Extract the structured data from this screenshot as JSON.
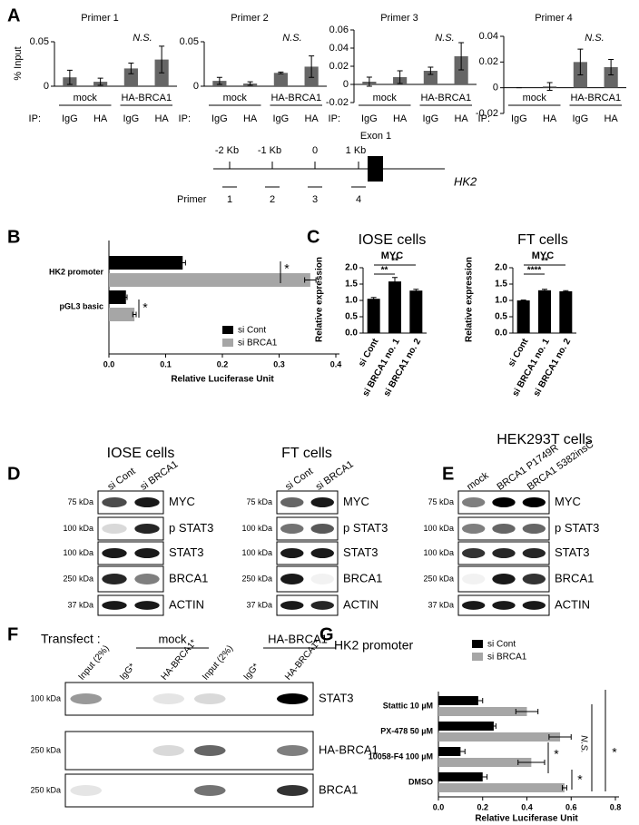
{
  "panel_letters": [
    "A",
    "B",
    "C",
    "D",
    "E",
    "F",
    "G"
  ],
  "chart_data": [
    {
      "type": "bar",
      "title": "Primer 1",
      "ylabel": "% Input",
      "category_prefix": "IP:",
      "categories": [
        "IgG",
        "HA",
        "IgG",
        "HA"
      ],
      "groups": [
        "mock",
        "HA-BRCA1"
      ],
      "values": [
        0.01,
        0.005,
        0.02,
        0.03
      ],
      "errors": [
        0.008,
        0.004,
        0.006,
        0.015
      ],
      "color": "#666666",
      "ylim": [
        0,
        0.05
      ],
      "yticks": [
        0,
        0.05
      ],
      "annotations": [
        "N.S."
      ]
    },
    {
      "type": "bar",
      "title": "Primer 2",
      "category_prefix": "IP:",
      "categories": [
        "IgG",
        "HA",
        "IgG",
        "HA"
      ],
      "groups": [
        "mock",
        "HA-BRCA1"
      ],
      "values": [
        0.006,
        0.003,
        0.015,
        0.022
      ],
      "errors": [
        0.004,
        0.002,
        0.001,
        0.012
      ],
      "color": "#666666",
      "ylim": [
        0,
        0.05
      ],
      "yticks": [
        0,
        0.05
      ],
      "annotations": [
        "N.S."
      ]
    },
    {
      "type": "bar",
      "title": "Primer 3",
      "category_prefix": "IP:",
      "categories": [
        "IgG",
        "HA",
        "IgG",
        "HA"
      ],
      "groups": [
        "mock",
        "HA-BRCA1"
      ],
      "values": [
        0.003,
        0.008,
        0.015,
        0.031
      ],
      "errors": [
        0.005,
        0.007,
        0.004,
        0.015
      ],
      "color": "#666666",
      "ylim": [
        -0.02,
        0.06
      ],
      "yticks": [
        -0.02,
        0,
        0.02,
        0.04,
        0.06
      ],
      "annotations": [
        "N.S."
      ]
    },
    {
      "type": "bar",
      "title": "Primer 4",
      "category_prefix": "IP:",
      "categories": [
        "IgG",
        "HA",
        "IgG",
        "HA"
      ],
      "groups": [
        "mock",
        "HA-BRCA1"
      ],
      "values": [
        0,
        0.001,
        0.02,
        0.016
      ],
      "errors": [
        0,
        0.003,
        0.01,
        0.006
      ],
      "color": "#666666",
      "ylim": [
        -0.02,
        0.04
      ],
      "yticks": [
        -0.02,
        0,
        0.02,
        0.04
      ],
      "annotations": [
        "N.S."
      ]
    },
    {
      "type": "barh",
      "categories": [
        "HK2 promoter",
        "pGL3 basic"
      ],
      "series": [
        {
          "name": "si Cont",
          "color": "#000000",
          "values": [
            0.13,
            0.03
          ],
          "errors": [
            0.005,
            0.002
          ]
        },
        {
          "name": "si BRCA1",
          "color": "#a6a6a6",
          "values": [
            0.355,
            0.045
          ],
          "errors": [
            0.01,
            0.003
          ]
        }
      ],
      "xlabel": "Relative Luciferase Unit",
      "xlim": [
        0,
        0.4
      ],
      "xticks": [
        {
          "value": 0,
          "label": "0.0"
        },
        0.1,
        0.2,
        0.3,
        0.4
      ],
      "legend": "lower right",
      "annotations": [
        "*",
        "*"
      ]
    },
    {
      "type": "bar",
      "title": "IOSE cells",
      "subtitle": "MYC",
      "ylabel": "Relative expression",
      "categories": [
        "si Cont",
        "si BRCA1 no. 1",
        "si BRCA1 no. 2"
      ],
      "values": [
        1.05,
        1.58,
        1.3
      ],
      "errors": [
        0.04,
        0.12,
        0.04
      ],
      "color": "#000000",
      "ylim": [
        0,
        2
      ],
      "yticks": [
        {
          "value": 0,
          "label": "0.0"
        },
        0.5,
        {
          "value": 1,
          "label": "1.0"
        },
        1.5,
        {
          "value": 2,
          "label": "2.0"
        }
      ],
      "annotations": [
        "**",
        "**"
      ]
    },
    {
      "type": "bar",
      "title": "FT cells",
      "subtitle": "MYC",
      "ylabel": "Relative expression",
      "categories": [
        "si Cont",
        "si BRCA1 no. 1",
        "si BRCA1 no. 2"
      ],
      "values": [
        1.0,
        1.31,
        1.28
      ],
      "errors": [
        0.01,
        0.03,
        0.02
      ],
      "color": "#000000",
      "ylim": [
        0,
        2
      ],
      "yticks": [
        {
          "value": 0,
          "label": "0.0"
        },
        0.5,
        {
          "value": 1,
          "label": "1.0"
        },
        1.5,
        {
          "value": 2,
          "label": "2.0"
        }
      ],
      "annotations": [
        "****",
        "**"
      ]
    },
    {
      "type": "barh",
      "title": "HK2 promoter",
      "categories": [
        "Stattic 10 µM",
        "PX-478 50 µM",
        "10058-F4 100 µM",
        "DMSO"
      ],
      "series": [
        {
          "name": "si Cont",
          "color": "#000000",
          "values": [
            0.18,
            0.25,
            0.1,
            0.2
          ],
          "errors": [
            0.02,
            0.01,
            0.02,
            0.02
          ]
        },
        {
          "name": "si BRCA1",
          "color": "#a6a6a6",
          "values": [
            0.4,
            0.55,
            0.42,
            0.57
          ],
          "errors": [
            0.05,
            0.05,
            0.06,
            0.01
          ]
        }
      ],
      "xlabel": "Relative Luciferase Unit",
      "xlim": [
        0,
        0.8
      ],
      "xticks": [
        {
          "value": 0,
          "label": "0.0"
        },
        0.2,
        0.4,
        0.6,
        0.8
      ],
      "legend": "upper right",
      "annotations": [
        "*",
        "*",
        "N.S.",
        "*"
      ]
    }
  ],
  "diagram": {
    "positions": [
      "-2 Kb",
      "-1 Kb",
      "0",
      "1 Kb"
    ],
    "exon": "Exon 1",
    "gene": "HK2",
    "primer_label": "Primer",
    "primers": [
      "1",
      "2",
      "3",
      "4"
    ]
  },
  "blots": [
    {
      "title": "IOSE cells",
      "lanes": [
        "si Cont",
        "si BRCA1"
      ],
      "markers": [
        "75 kDa",
        "100 kDa",
        "100 kDa",
        "250 kDa",
        "37 kDa"
      ],
      "proteins": [
        "MYC",
        "p STAT3",
        "STAT3",
        "BRCA1",
        "ACTIN"
      ]
    },
    {
      "title": "FT cells",
      "lanes": [
        "si Cont",
        "si BRCA1"
      ],
      "markers": [
        "75 kDa",
        "100 kDa",
        "100 kDa",
        "250 kDa",
        "37 kDa"
      ],
      "proteins": [
        "MYC",
        "p STAT3",
        "STAT3",
        "BRCA1",
        "ACTIN"
      ]
    },
    {
      "title": "HEK293T cells",
      "lanes": [
        "mock",
        "BRCA1 P1749R",
        "BRCA1 5382insC"
      ],
      "markers": [
        "75 kDa",
        "100 kDa",
        "100 kDa",
        "250 kDa",
        "37 kDa"
      ],
      "proteins": [
        "MYC",
        "p STAT3",
        "STAT3",
        "BRCA1",
        "ACTIN"
      ]
    },
    {
      "title": "Transfect :",
      "groups": [
        "mock",
        "HA-BRCA1"
      ],
      "lanes": [
        "Input (2%)",
        "IgG*",
        "HA-BRCA1*",
        "Input (2%)",
        "IgG*",
        "HA-BRCA1*"
      ],
      "markers": [
        "100 kDa",
        "250 kDa",
        "250 kDa"
      ],
      "proteins": [
        "STAT3",
        "HA-BRCA1",
        "BRCA1"
      ]
    }
  ]
}
